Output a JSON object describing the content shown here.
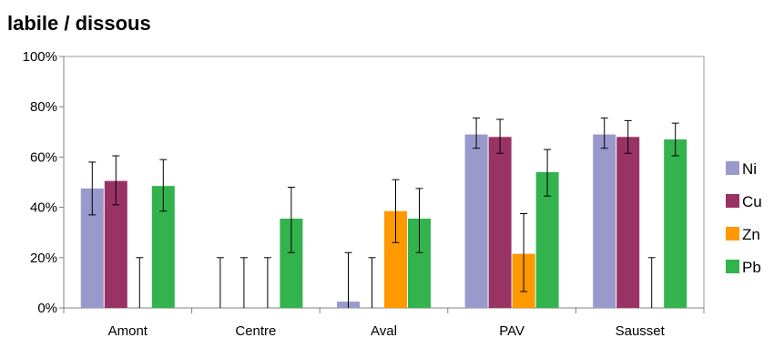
{
  "chart_data": {
    "type": "bar",
    "title": "labile / dissous",
    "xlabel": "",
    "ylabel": "",
    "ylim": [
      0,
      100
    ],
    "ytick_labels": [
      "0%",
      "20%",
      "40%",
      "60%",
      "80%",
      "100%"
    ],
    "ytick_values": [
      0,
      20,
      40,
      60,
      80,
      100
    ],
    "categories": [
      "Amont",
      "Centre",
      "Aval",
      "PAV",
      "Sausset"
    ],
    "legend_position": "right",
    "grid": false,
    "series": [
      {
        "name": "Ni",
        "color": "#9999cc",
        "values": [
          47.5,
          0,
          2.5,
          69,
          69
        ],
        "err_low": [
          37,
          0,
          0,
          63.5,
          63.5
        ],
        "err_high": [
          58,
          20,
          22,
          75.5,
          75.5
        ]
      },
      {
        "name": "Cu",
        "color": "#993366",
        "values": [
          50.5,
          0,
          0,
          68,
          68
        ],
        "err_low": [
          41,
          0,
          0,
          61.5,
          61.5
        ],
        "err_high": [
          60.5,
          20,
          20,
          75,
          74.5
        ]
      },
      {
        "name": "Zn",
        "color": "#ff9900",
        "values": [
          0,
          0,
          38.5,
          21.5,
          0
        ],
        "err_low": [
          0,
          0,
          26,
          6.5,
          0
        ],
        "err_high": [
          20,
          20,
          51,
          37.5,
          20
        ]
      },
      {
        "name": "Pb",
        "color": "#33b34d",
        "values": [
          48.5,
          35.5,
          35.5,
          54,
          67
        ],
        "err_low": [
          38.5,
          22,
          22,
          44.5,
          60.5
        ],
        "err_high": [
          59,
          48,
          47.5,
          63,
          73.5
        ]
      }
    ]
  }
}
